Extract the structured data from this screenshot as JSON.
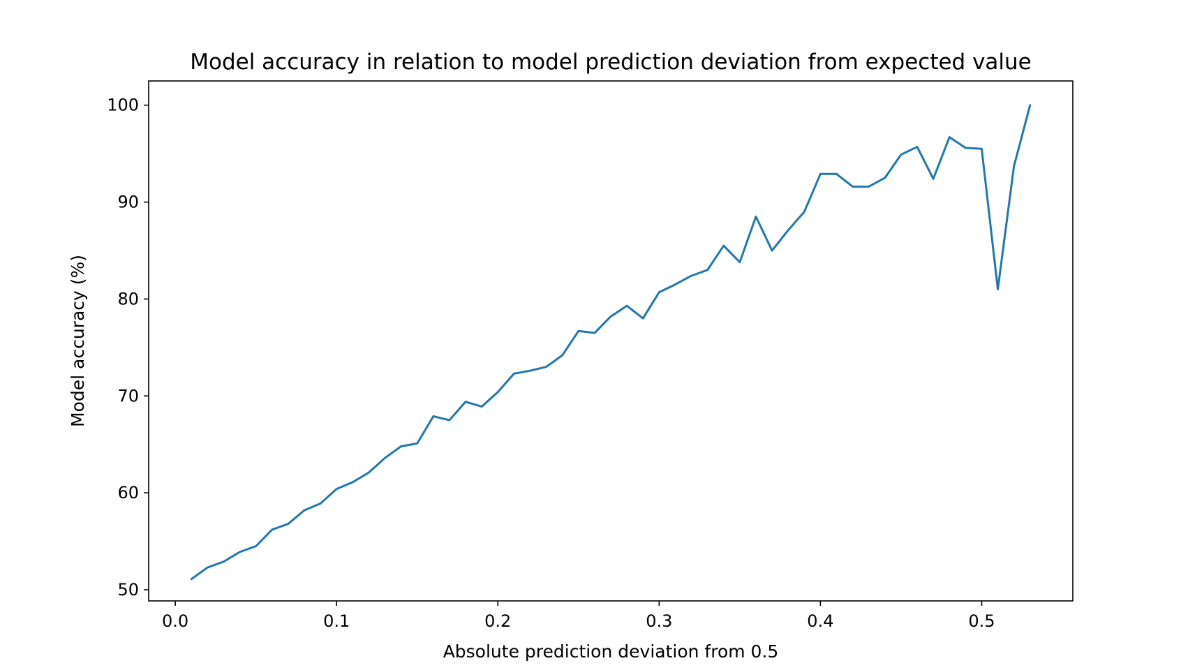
{
  "chart_data": {
    "type": "line",
    "title": "Model accuracy in relation to model prediction deviation from expected value",
    "xlabel": "Absolute prediction deviation from 0.5",
    "ylabel": "Model accuracy (%)",
    "xlim": [
      -0.0165,
      0.5565
    ],
    "ylim": [
      48.85,
      102.5
    ],
    "x_ticks": [
      0.0,
      0.1,
      0.2,
      0.3,
      0.4,
      0.5
    ],
    "x_tick_labels": [
      "0.0",
      "0.1",
      "0.2",
      "0.3",
      "0.4",
      "0.5"
    ],
    "y_ticks": [
      50,
      60,
      70,
      80,
      90,
      100
    ],
    "y_tick_labels": [
      "50",
      "60",
      "70",
      "80",
      "90",
      "100"
    ],
    "grid": false,
    "series": [
      {
        "color": "#1f77b4",
        "x": [
          0.01,
          0.02,
          0.03,
          0.04,
          0.05,
          0.06,
          0.07,
          0.08,
          0.09,
          0.1,
          0.11,
          0.12,
          0.13,
          0.14,
          0.15,
          0.16,
          0.17,
          0.18,
          0.19,
          0.2,
          0.21,
          0.22,
          0.23,
          0.24,
          0.25,
          0.26,
          0.27,
          0.28,
          0.29,
          0.3,
          0.31,
          0.32,
          0.33,
          0.34,
          0.35,
          0.36,
          0.37,
          0.38,
          0.39,
          0.4,
          0.41,
          0.42,
          0.43,
          0.44,
          0.45,
          0.46,
          0.47,
          0.48,
          0.49,
          0.5,
          0.51,
          0.52,
          0.53
        ],
        "y": [
          51.1,
          52.3,
          52.9,
          53.9,
          54.5,
          56.2,
          56.8,
          58.2,
          58.9,
          60.4,
          61.1,
          62.1,
          63.6,
          64.8,
          65.1,
          67.9,
          67.5,
          69.4,
          68.9,
          70.4,
          72.3,
          72.6,
          73.0,
          74.2,
          76.7,
          76.5,
          78.2,
          79.3,
          78.0,
          80.7,
          81.5,
          82.4,
          83.0,
          85.5,
          83.8,
          88.5,
          85.0,
          87.1,
          89.0,
          92.9,
          92.9,
          91.6,
          91.6,
          92.5,
          94.9,
          95.7,
          92.4,
          96.7,
          95.6,
          95.5,
          81.0,
          93.7,
          100.0
        ]
      }
    ]
  }
}
